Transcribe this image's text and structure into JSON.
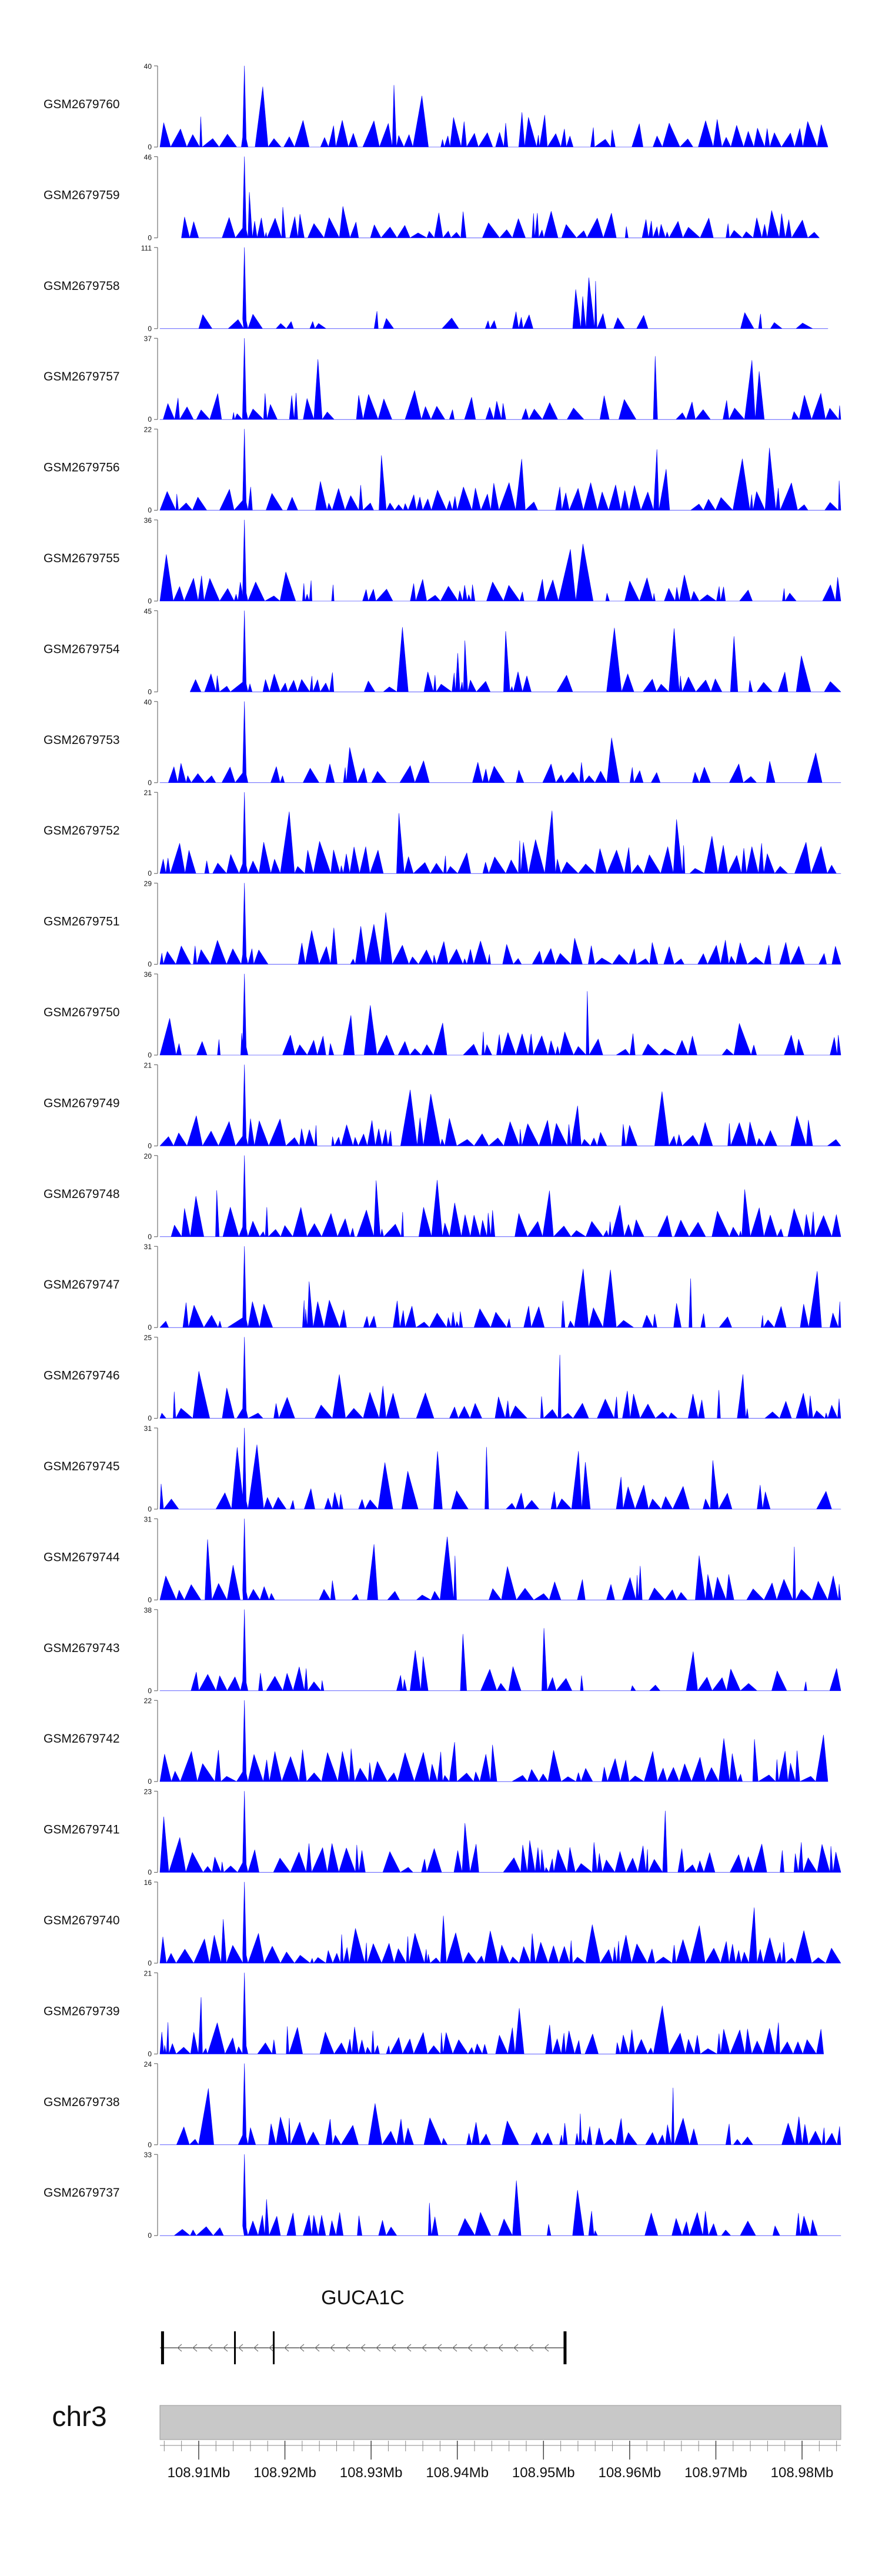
{
  "chart_data": {
    "type": "area",
    "title": "",
    "color": "#0000ff",
    "region": {
      "chromosome": "chr3",
      "start_mb": 108.9055,
      "end_mb": 108.9845
    },
    "gene": {
      "name": "GUCA1C",
      "strand": "-",
      "start_mb": 108.9055,
      "end_mb": 108.9525,
      "exons_mb": [
        108.9058,
        108.9142,
        108.9187,
        108.9525
      ]
    },
    "x_ticks": {
      "major": [
        "108.91Mb",
        "108.92Mb",
        "108.93Mb",
        "108.94Mb",
        "108.95Mb",
        "108.96Mb",
        "108.97Mb",
        "108.98Mb"
      ],
      "major_values": [
        108.91,
        108.92,
        108.93,
        108.94,
        108.95,
        108.96,
        108.97,
        108.98
      ],
      "minor_step_mb": 0.002
    },
    "series": [
      {
        "name": "GSM2679760",
        "ymax": 40,
        "ymin": 0,
        "peak_mb": 108.9153,
        "peak": 40,
        "density": 0.55,
        "seed": 1,
        "span": [
          108.9055,
          108.983
        ]
      },
      {
        "name": "GSM2679759",
        "ymax": 46,
        "ymin": 0,
        "peak_mb": 108.9153,
        "peak": 46,
        "density": 0.45,
        "seed": 2,
        "span": [
          108.908,
          108.982
        ]
      },
      {
        "name": "GSM2679758",
        "ymax": 111,
        "ymin": 0,
        "peak_mb": 108.9153,
        "peak": 111,
        "density": 0.12,
        "seed": 3,
        "span": [
          108.9055,
          108.983
        ]
      },
      {
        "name": "GSM2679757",
        "ymax": 37,
        "ymin": 0,
        "peak_mb": 108.9153,
        "peak": 37,
        "density": 0.45,
        "seed": 4,
        "span": [
          108.9055,
          108.9845
        ]
      },
      {
        "name": "GSM2679756",
        "ymax": 22,
        "ymin": 0,
        "peak_mb": 108.9153,
        "peak": 22,
        "density": 0.55,
        "seed": 5,
        "span": [
          108.9055,
          108.9845
        ]
      },
      {
        "name": "GSM2679755",
        "ymax": 36,
        "ymin": 0,
        "peak_mb": 108.9153,
        "peak": 36,
        "density": 0.45,
        "seed": 6,
        "span": [
          108.9055,
          108.9845
        ]
      },
      {
        "name": "GSM2679754",
        "ymax": 45,
        "ymin": 0,
        "peak_mb": 108.9153,
        "peak": 45,
        "density": 0.25,
        "seed": 7,
        "span": [
          108.909,
          108.9845
        ]
      },
      {
        "name": "GSM2679753",
        "ymax": 40,
        "ymin": 0,
        "peak_mb": 108.9153,
        "peak": 40,
        "density": 0.3,
        "seed": 8,
        "span": [
          108.9055,
          108.9845
        ]
      },
      {
        "name": "GSM2679752",
        "ymax": 21,
        "ymin": 0,
        "peak_mb": 108.9153,
        "peak": 21,
        "density": 0.65,
        "seed": 9,
        "span": [
          108.9055,
          108.9845
        ]
      },
      {
        "name": "GSM2679751",
        "ymax": 29,
        "ymin": 0,
        "peak_mb": 108.9153,
        "peak": 29,
        "density": 0.45,
        "seed": 10,
        "span": [
          108.9055,
          108.9845
        ]
      },
      {
        "name": "GSM2679750",
        "ymax": 36,
        "ymin": 0,
        "peak_mb": 108.9153,
        "peak": 36,
        "density": 0.35,
        "seed": 11,
        "span": [
          108.9055,
          108.9845
        ]
      },
      {
        "name": "GSM2679749",
        "ymax": 21,
        "ymin": 0,
        "peak_mb": 108.9153,
        "peak": 21,
        "density": 0.55,
        "seed": 12,
        "span": [
          108.9055,
          108.9845
        ]
      },
      {
        "name": "GSM2679748",
        "ymax": 20,
        "ymin": 0,
        "peak_mb": 108.9153,
        "peak": 20,
        "density": 0.6,
        "seed": 13,
        "span": [
          108.9055,
          108.9845
        ]
      },
      {
        "name": "GSM2679747",
        "ymax": 31,
        "ymin": 0,
        "peak_mb": 108.9153,
        "peak": 31,
        "density": 0.45,
        "seed": 14,
        "span": [
          108.9055,
          108.9845
        ]
      },
      {
        "name": "GSM2679746",
        "ymax": 25,
        "ymin": 0,
        "peak_mb": 108.9153,
        "peak": 25,
        "density": 0.5,
        "seed": 15,
        "span": [
          108.9055,
          108.9845
        ]
      },
      {
        "name": "GSM2679745",
        "ymax": 31,
        "ymin": 0,
        "peak_mb": 108.9153,
        "peak": 31,
        "density": 0.4,
        "seed": 16,
        "span": [
          108.9055,
          108.9845
        ]
      },
      {
        "name": "GSM2679744",
        "ymax": 31,
        "ymin": 0,
        "peak_mb": 108.9153,
        "peak": 31,
        "density": 0.4,
        "seed": 17,
        "span": [
          108.9055,
          108.9845
        ]
      },
      {
        "name": "GSM2679743",
        "ymax": 38,
        "ymin": 0,
        "peak_mb": 108.9153,
        "peak": 38,
        "density": 0.35,
        "seed": 18,
        "span": [
          108.9055,
          108.9845
        ]
      },
      {
        "name": "GSM2679742",
        "ymax": 22,
        "ymin": 0,
        "peak_mb": 108.9153,
        "peak": 22,
        "density": 0.65,
        "seed": 19,
        "span": [
          108.9055,
          108.983
        ]
      },
      {
        "name": "GSM2679741",
        "ymax": 23,
        "ymin": 0,
        "peak_mb": 108.9153,
        "peak": 23,
        "density": 0.55,
        "seed": 20,
        "span": [
          108.9055,
          108.9845
        ]
      },
      {
        "name": "GSM2679740",
        "ymax": 16,
        "ymin": 0,
        "peak_mb": 108.9153,
        "peak": 16,
        "density": 0.75,
        "seed": 21,
        "span": [
          108.9055,
          108.9845
        ]
      },
      {
        "name": "GSM2679739",
        "ymax": 21,
        "ymin": 0,
        "peak_mb": 108.9153,
        "peak": 21,
        "density": 0.6,
        "seed": 22,
        "span": [
          108.9055,
          108.9825
        ]
      },
      {
        "name": "GSM2679738",
        "ymax": 24,
        "ymin": 0,
        "peak_mb": 108.9153,
        "peak": 24,
        "density": 0.5,
        "seed": 23,
        "span": [
          108.9055,
          108.9845
        ]
      },
      {
        "name": "GSM2679737",
        "ymax": 33,
        "ymin": 0,
        "peak_mb": 108.9153,
        "peak": 33,
        "density": 0.35,
        "seed": 24,
        "span": [
          108.9055,
          108.9845
        ]
      }
    ]
  }
}
